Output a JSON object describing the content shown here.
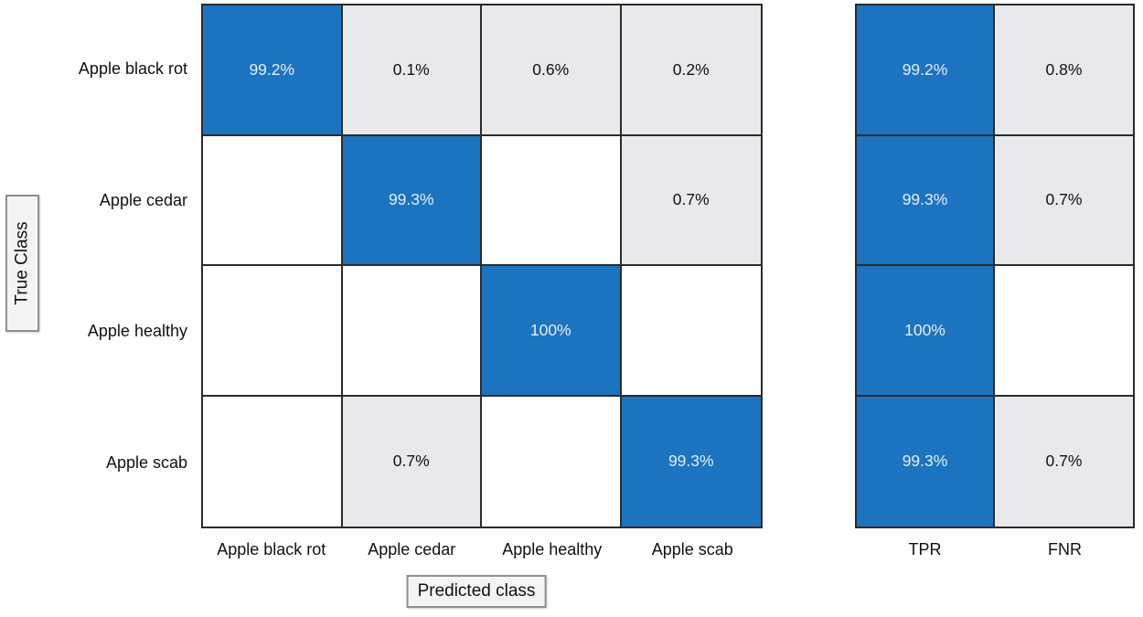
{
  "colors": {
    "diagonal_blue": "#1c73c0",
    "offdiagonal_gray": "#e9e9ed",
    "empty_white": "#ffffff",
    "grid_line": "#2b2b2b",
    "blue_cell_text": "#e4eef9",
    "dark_text": "#111111",
    "axis_box_bg": "#f4f4f4",
    "axis_box_border": "#8e8e8e"
  },
  "axes": {
    "y_label": "True Class",
    "x_label": "Predicted class"
  },
  "row_labels": [
    "Apple black rot",
    "Apple cedar",
    "Apple healthy",
    "Apple scab"
  ],
  "col_labels": [
    "Apple black rot",
    "Apple cedar",
    "Apple healthy",
    "Apple scab"
  ],
  "summary_labels": {
    "tpr": "TPR",
    "fnr": "FNR"
  },
  "matrix": {
    "rows": [
      {
        "cells": [
          "99.2%",
          "0.1%",
          "0.6%",
          "0.2%"
        ],
        "tpr": "99.2%",
        "fnr": "0.8%"
      },
      {
        "cells": [
          "",
          "99.3%",
          "",
          "0.7%"
        ],
        "tpr": "99.3%",
        "fnr": "0.7%"
      },
      {
        "cells": [
          "",
          "",
          "100%",
          ""
        ],
        "tpr": "100%",
        "fnr": ""
      },
      {
        "cells": [
          "",
          "0.7%",
          "",
          "99.3%"
        ],
        "tpr": "99.3%",
        "fnr": "0.7%"
      }
    ]
  },
  "chart_data": {
    "type": "heatmap",
    "title": "",
    "xlabel": "Predicted class",
    "ylabel": "True Class",
    "x_categories": [
      "Apple black rot",
      "Apple cedar",
      "Apple healthy",
      "Apple scab"
    ],
    "y_categories": [
      "Apple black rot",
      "Apple cedar",
      "Apple healthy",
      "Apple scab"
    ],
    "values_percent": [
      [
        99.2,
        0.1,
        0.6,
        0.2
      ],
      [
        0,
        99.3,
        0,
        0.7
      ],
      [
        0,
        0,
        100,
        0
      ],
      [
        0,
        0.7,
        0,
        99.3
      ]
    ],
    "summary_columns": [
      "TPR",
      "FNR"
    ],
    "summary": {
      "TPR": [
        99.2,
        99.3,
        100,
        99.3
      ],
      "FNR": [
        0.8,
        0.7,
        0,
        0.7
      ]
    },
    "legend": "none",
    "grid": "on",
    "cell_color_rule": "diagonal/TPR cells blue, nonzero off-diagonal cells light gray, zero cells white"
  }
}
